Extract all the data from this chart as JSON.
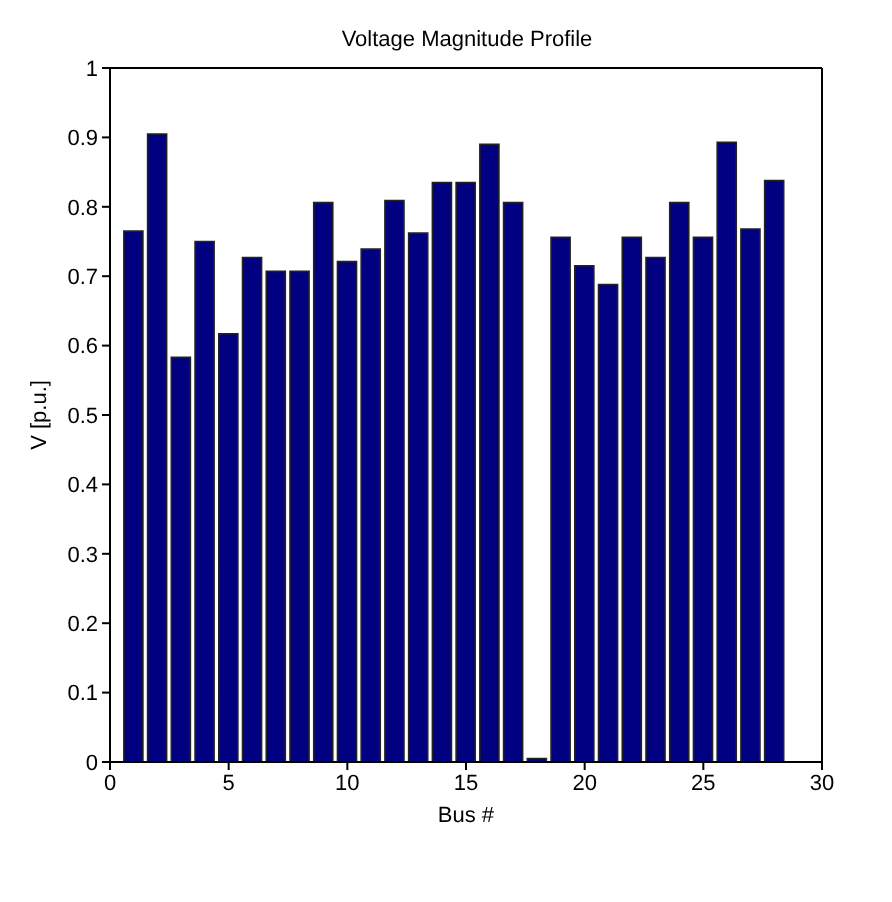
{
  "chart_data": {
    "type": "bar",
    "title": "Voltage Magnitude Profile",
    "xlabel": "Bus #",
    "ylabel": "V  [p.u.]",
    "x": [
      1,
      2,
      3,
      4,
      5,
      6,
      7,
      8,
      9,
      10,
      11,
      12,
      13,
      14,
      15,
      16,
      17,
      18,
      19,
      20,
      21,
      22,
      23,
      24,
      25,
      26,
      27,
      28
    ],
    "values": [
      0.765,
      0.905,
      0.583,
      0.75,
      0.617,
      0.727,
      0.707,
      0.707,
      0.806,
      0.721,
      0.739,
      0.809,
      0.762,
      0.835,
      0.835,
      0.89,
      0.806,
      0.005,
      0.756,
      0.715,
      0.688,
      0.756,
      0.727,
      0.806,
      0.756,
      0.893,
      0.768,
      0.838
    ],
    "color": "#000080",
    "xlim": [
      0,
      30
    ],
    "xticks": [
      0,
      5,
      10,
      15,
      20,
      25,
      30
    ],
    "ylim": [
      0,
      1
    ],
    "yticks": [
      0,
      0.1,
      0.2,
      0.3,
      0.4,
      0.5,
      0.6,
      0.7,
      0.8,
      0.9,
      1
    ],
    "grid": false,
    "legend": false
  }
}
